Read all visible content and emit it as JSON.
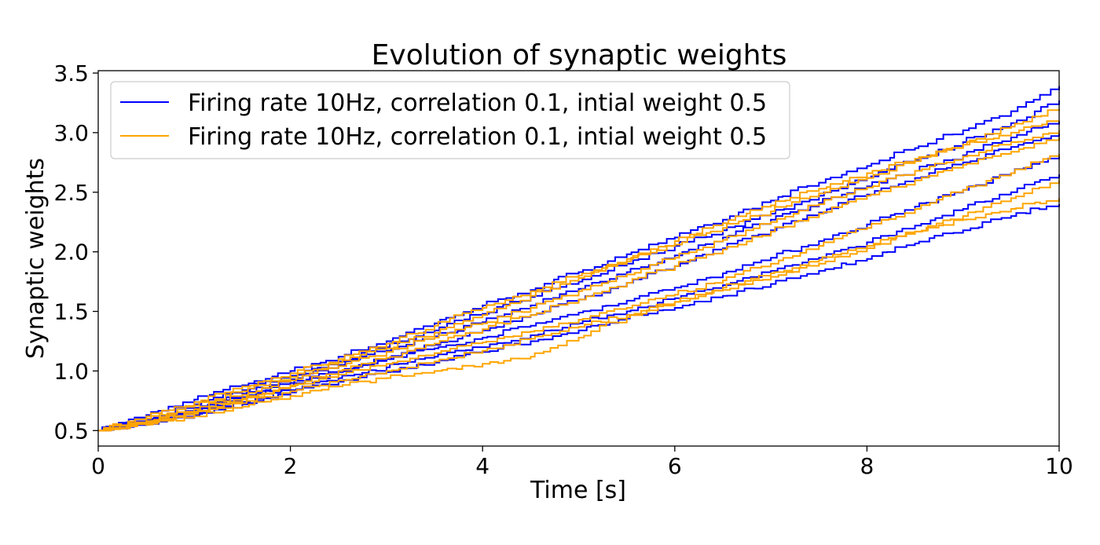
{
  "chart_data": {
    "type": "line",
    "title": "Evolution of synaptic weights",
    "xlabel": "Time [s]",
    "ylabel": "Synaptic weights",
    "xlim": [
      0,
      10
    ],
    "ylim": [
      0.37,
      3.52
    ],
    "xticks": [
      0,
      2,
      4,
      6,
      8,
      10
    ],
    "xtick_labels": [
      "0",
      "2",
      "4",
      "6",
      "8",
      "10"
    ],
    "yticks": [
      0.5,
      1.0,
      1.5,
      2.0,
      2.5,
      3.0,
      3.5
    ],
    "ytick_labels": [
      "0.5",
      "1.0",
      "1.5",
      "2.0",
      "2.5",
      "3.0",
      "3.5"
    ],
    "grid": false,
    "legend_position": "top-left",
    "x": [
      0,
      0.5,
      1,
      1.5,
      2,
      2.5,
      3,
      3.5,
      4,
      4.5,
      5,
      5.5,
      6,
      6.5,
      7,
      7.5,
      8,
      8.5,
      9,
      9.5,
      10
    ],
    "series": [
      {
        "name": "Firing rate 10Hz, correlation 0.1, intial weight 0.5",
        "color": "#0000ff",
        "values": [
          0.5,
          0.63,
          0.76,
          0.88,
          1.0,
          1.12,
          1.25,
          1.4,
          1.55,
          1.68,
          1.83,
          1.98,
          2.12,
          2.27,
          2.43,
          2.58,
          2.72,
          2.87,
          3.02,
          3.18,
          3.39
        ]
      },
      {
        "name": "",
        "color": "#0000ff",
        "values": [
          0.5,
          0.6,
          0.72,
          0.84,
          0.96,
          1.08,
          1.2,
          1.34,
          1.48,
          1.62,
          1.75,
          1.9,
          2.05,
          2.18,
          2.32,
          2.47,
          2.62,
          2.77,
          2.92,
          3.08,
          3.27
        ]
      },
      {
        "name": "",
        "color": "#0000ff",
        "values": [
          0.5,
          0.58,
          0.69,
          0.81,
          0.93,
          1.05,
          1.17,
          1.29,
          1.41,
          1.55,
          1.69,
          1.83,
          1.97,
          2.12,
          2.27,
          2.41,
          2.55,
          2.68,
          2.81,
          2.96,
          3.1
        ]
      },
      {
        "name": "",
        "color": "#0000ff",
        "values": [
          0.5,
          0.57,
          0.67,
          0.77,
          0.88,
          0.99,
          1.1,
          1.22,
          1.34,
          1.47,
          1.6,
          1.74,
          1.88,
          2.03,
          2.18,
          2.33,
          2.48,
          2.62,
          2.75,
          2.88,
          3.0
        ]
      },
      {
        "name": "",
        "color": "#0000ff",
        "values": [
          0.5,
          0.59,
          0.68,
          0.78,
          0.9,
          1.0,
          1.1,
          1.19,
          1.28,
          1.38,
          1.49,
          1.59,
          1.7,
          1.82,
          1.95,
          2.09,
          2.23,
          2.38,
          2.52,
          2.66,
          2.8
        ]
      },
      {
        "name": "",
        "color": "#0000ff",
        "values": [
          0.5,
          0.56,
          0.64,
          0.74,
          0.84,
          0.94,
          1.03,
          1.12,
          1.2,
          1.3,
          1.4,
          1.5,
          1.61,
          1.72,
          1.84,
          1.95,
          2.08,
          2.22,
          2.36,
          2.5,
          2.65
        ]
      },
      {
        "name": "",
        "color": "#0000ff",
        "values": [
          0.5,
          0.55,
          0.63,
          0.72,
          0.82,
          0.91,
          0.99,
          1.07,
          1.16,
          1.25,
          1.34,
          1.44,
          1.53,
          1.63,
          1.73,
          1.84,
          1.94,
          2.07,
          2.18,
          2.3,
          2.4
        ]
      },
      {
        "name": "Firing rate 10Hz, correlation 0.1, intial weight 0.5",
        "color": "#ffa500",
        "values": [
          0.5,
          0.62,
          0.74,
          0.87,
          0.98,
          1.1,
          1.23,
          1.38,
          1.53,
          1.67,
          1.8,
          1.94,
          2.09,
          2.24,
          2.39,
          2.53,
          2.66,
          2.78,
          2.9,
          3.05,
          3.2
        ]
      },
      {
        "name": "",
        "color": "#ffa500",
        "values": [
          0.5,
          0.6,
          0.71,
          0.83,
          0.95,
          1.07,
          1.19,
          1.32,
          1.47,
          1.63,
          1.78,
          1.92,
          2.06,
          2.2,
          2.34,
          2.49,
          2.62,
          2.76,
          2.9,
          3.0,
          3.1
        ]
      },
      {
        "name": "",
        "color": "#ffa500",
        "values": [
          0.5,
          0.58,
          0.68,
          0.8,
          0.92,
          1.04,
          1.16,
          1.28,
          1.4,
          1.53,
          1.67,
          1.81,
          1.95,
          2.1,
          2.25,
          2.4,
          2.54,
          2.68,
          2.8,
          2.92,
          3.02
        ]
      },
      {
        "name": "",
        "color": "#ffa500",
        "values": [
          0.5,
          0.57,
          0.66,
          0.77,
          0.88,
          1.0,
          1.11,
          1.23,
          1.35,
          1.47,
          1.6,
          1.74,
          1.88,
          2.02,
          2.17,
          2.32,
          2.47,
          2.6,
          2.73,
          2.84,
          2.96
        ]
      },
      {
        "name": "",
        "color": "#ffa500",
        "values": [
          0.5,
          0.56,
          0.65,
          0.76,
          0.87,
          0.97,
          1.06,
          1.15,
          1.24,
          1.33,
          1.43,
          1.53,
          1.64,
          1.76,
          1.9,
          2.05,
          2.2,
          2.36,
          2.52,
          2.66,
          2.82
        ]
      },
      {
        "name": "",
        "color": "#ffa500",
        "values": [
          0.5,
          0.55,
          0.64,
          0.73,
          0.83,
          0.92,
          1.0,
          1.08,
          1.17,
          1.27,
          1.37,
          1.47,
          1.58,
          1.68,
          1.79,
          1.9,
          2.03,
          2.17,
          2.3,
          2.45,
          2.6
        ]
      },
      {
        "name": "",
        "color": "#ffa500",
        "values": [
          0.5,
          0.55,
          0.62,
          0.7,
          0.79,
          0.87,
          0.94,
          1.0,
          1.06,
          1.12,
          1.28,
          1.45,
          1.58,
          1.7,
          1.82,
          1.93,
          2.05,
          2.17,
          2.27,
          2.36,
          2.45
        ]
      }
    ]
  }
}
